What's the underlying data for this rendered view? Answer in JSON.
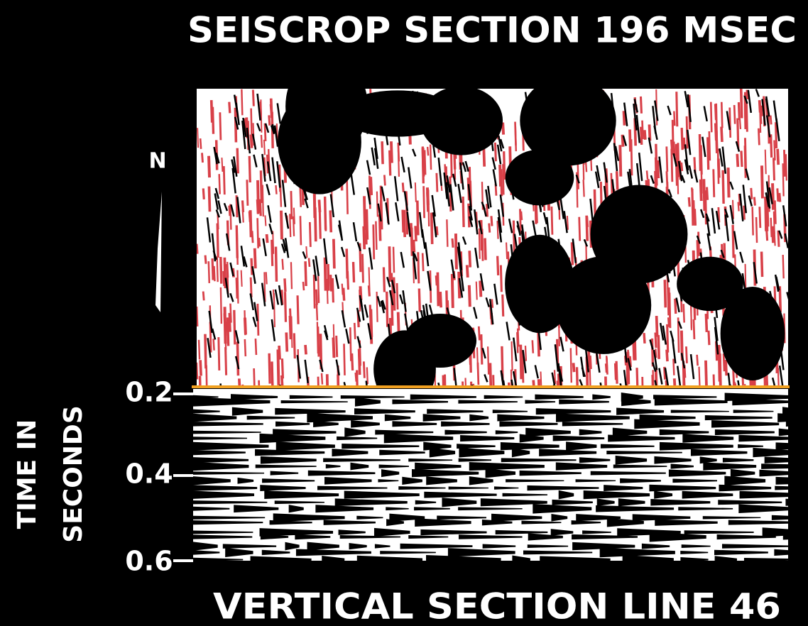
{
  "title": "SEISCROP SECTION 196 MSEC",
  "north_label": "N",
  "time_axis": {
    "label_lines": [
      "TIME IN",
      "SECONDS"
    ],
    "ticks": [
      "0.2",
      "0.4",
      "0.6"
    ]
  },
  "footer": "VERTICAL SECTION LINE 46"
}
